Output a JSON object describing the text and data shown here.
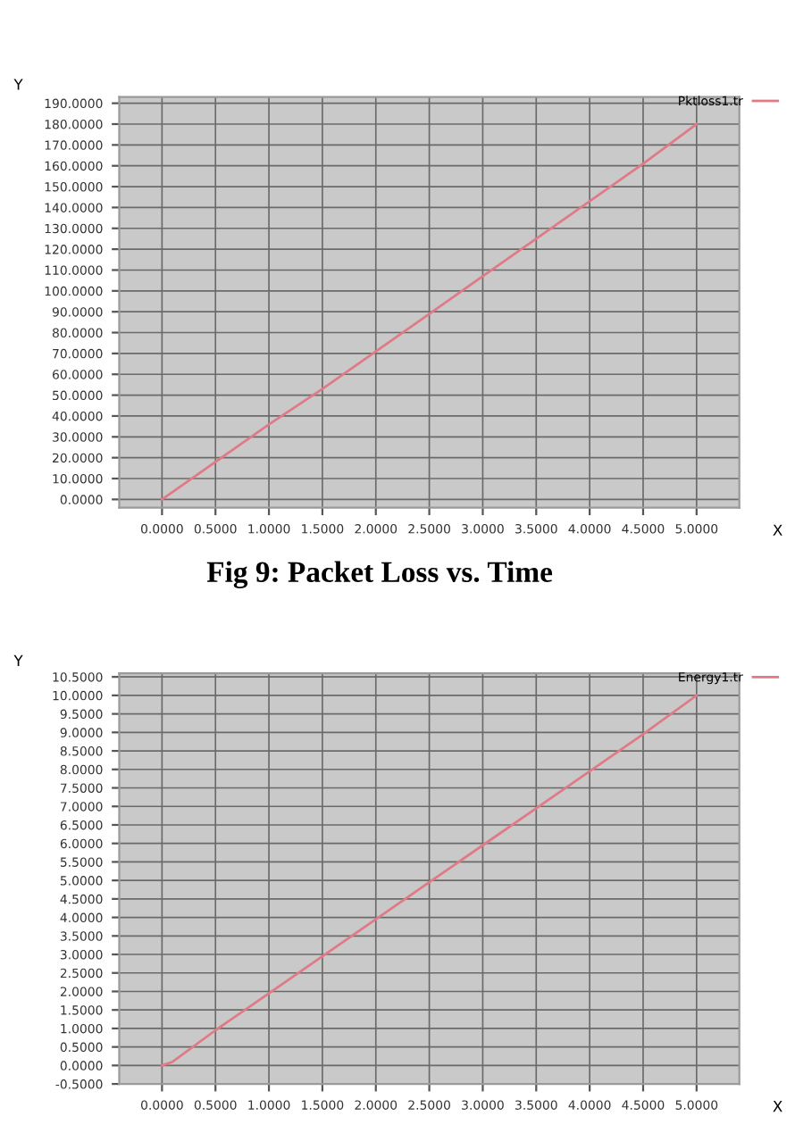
{
  "chart_data": [
    {
      "type": "line",
      "xlabel": "X",
      "ylabel": "Y",
      "annotations": [
        "Fig 9: Packet Loss vs. Time"
      ],
      "x": [
        0,
        0.5,
        1.0,
        1.5,
        2.0,
        2.5,
        3.0,
        3.5,
        4.0,
        4.5,
        5.0
      ],
      "series": [
        {
          "name": "Pktloss1.tr",
          "color": "#e07a86",
          "values": [
            0,
            18,
            36,
            53,
            71,
            89,
            107,
            125,
            143,
            161,
            180
          ]
        }
      ],
      "xlim": [
        -0.4,
        5.4
      ],
      "ylim": [
        -4,
        193
      ],
      "xticks": [
        {
          "value": 0,
          "label": "0.0000"
        },
        {
          "value": 0.5,
          "label": "0.5000"
        },
        {
          "value": 1.0,
          "label": "1.0000"
        },
        {
          "value": 1.5,
          "label": "1.5000"
        },
        {
          "value": 2.0,
          "label": "2.0000"
        },
        {
          "value": 2.5,
          "label": "2.5000"
        },
        {
          "value": 3.0,
          "label": "3.0000"
        },
        {
          "value": 3.5,
          "label": "3.5000"
        },
        {
          "value": 4.0,
          "label": "4.0000"
        },
        {
          "value": 4.5,
          "label": "4.5000"
        },
        {
          "value": 5.0,
          "label": "5.0000"
        }
      ],
      "yticks": [
        {
          "value": 0,
          "label": "0.0000"
        },
        {
          "value": 10,
          "label": "10.0000"
        },
        {
          "value": 20,
          "label": "20.0000"
        },
        {
          "value": 30,
          "label": "30.0000"
        },
        {
          "value": 40,
          "label": "40.0000"
        },
        {
          "value": 50,
          "label": "50.0000"
        },
        {
          "value": 60,
          "label": "60.0000"
        },
        {
          "value": 70,
          "label": "70.0000"
        },
        {
          "value": 80,
          "label": "80.0000"
        },
        {
          "value": 90,
          "label": "90.0000"
        },
        {
          "value": 100,
          "label": "100.0000"
        },
        {
          "value": 110,
          "label": "110.0000"
        },
        {
          "value": 120,
          "label": "120.0000"
        },
        {
          "value": 130,
          "label": "130.0000"
        },
        {
          "value": 140,
          "label": "140.0000"
        },
        {
          "value": 150,
          "label": "150.0000"
        },
        {
          "value": 160,
          "label": "160.0000"
        },
        {
          "value": 170,
          "label": "170.0000"
        },
        {
          "value": 180,
          "label": "180.0000"
        },
        {
          "value": 190,
          "label": "190.0000"
        }
      ],
      "grid": true,
      "legend": "top right"
    },
    {
      "type": "line",
      "xlabel": "X",
      "ylabel": "Y",
      "x": [
        0,
        0.1,
        0.5,
        1.0,
        1.5,
        2.0,
        2.5,
        3.0,
        3.5,
        4.0,
        4.5,
        5.0
      ],
      "series": [
        {
          "name": "Energy1.tr",
          "color": "#e07a86",
          "values": [
            0,
            0.1,
            0.95,
            1.95,
            2.95,
            3.95,
            4.95,
            5.95,
            6.95,
            7.95,
            8.95,
            10.0
          ]
        }
      ],
      "xlim": [
        -0.4,
        5.4
      ],
      "ylim": [
        -0.5,
        10.6
      ],
      "xticks": [
        {
          "value": 0,
          "label": "0.0000"
        },
        {
          "value": 0.5,
          "label": "0.5000"
        },
        {
          "value": 1.0,
          "label": "1.0000"
        },
        {
          "value": 1.5,
          "label": "1.5000"
        },
        {
          "value": 2.0,
          "label": "2.0000"
        },
        {
          "value": 2.5,
          "label": "2.5000"
        },
        {
          "value": 3.0,
          "label": "3.0000"
        },
        {
          "value": 3.5,
          "label": "3.5000"
        },
        {
          "value": 4.0,
          "label": "4.0000"
        },
        {
          "value": 4.5,
          "label": "4.5000"
        },
        {
          "value": 5.0,
          "label": "5.0000"
        }
      ],
      "yticks": [
        {
          "value": -0.5,
          "label": "-0.5000"
        },
        {
          "value": 0,
          "label": "0.0000"
        },
        {
          "value": 0.5,
          "label": "0.5000"
        },
        {
          "value": 1.0,
          "label": "1.0000"
        },
        {
          "value": 1.5,
          "label": "1.5000"
        },
        {
          "value": 2.0,
          "label": "2.0000"
        },
        {
          "value": 2.5,
          "label": "2.5000"
        },
        {
          "value": 3.0,
          "label": "3.0000"
        },
        {
          "value": 3.5,
          "label": "3.5000"
        },
        {
          "value": 4.0,
          "label": "4.0000"
        },
        {
          "value": 4.5,
          "label": "4.5000"
        },
        {
          "value": 5.0,
          "label": "5.0000"
        },
        {
          "value": 5.5,
          "label": "5.5000"
        },
        {
          "value": 6.0,
          "label": "6.0000"
        },
        {
          "value": 6.5,
          "label": "6.5000"
        },
        {
          "value": 7.0,
          "label": "7.0000"
        },
        {
          "value": 7.5,
          "label": "7.5000"
        },
        {
          "value": 8.0,
          "label": "8.0000"
        },
        {
          "value": 8.5,
          "label": "8.5000"
        },
        {
          "value": 9.0,
          "label": "9.0000"
        },
        {
          "value": 9.5,
          "label": "9.5000"
        },
        {
          "value": 10.0,
          "label": "10.0000"
        },
        {
          "value": 10.5,
          "label": "10.5000"
        }
      ],
      "grid": true,
      "legend": "top right"
    }
  ]
}
